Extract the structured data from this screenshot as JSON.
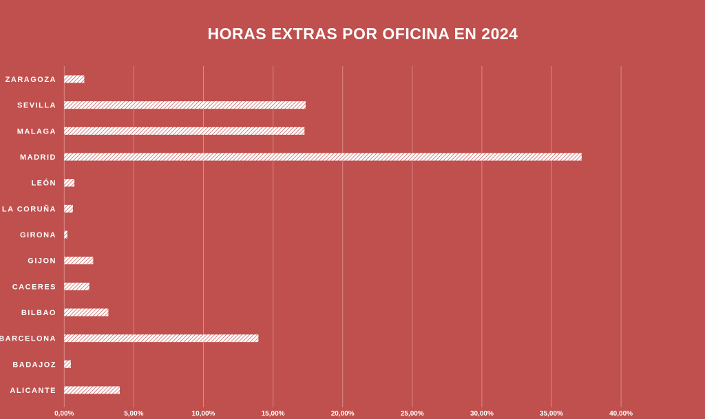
{
  "chart_data": {
    "type": "bar",
    "orientation": "horizontal",
    "title": "HORAS EXTRAS POR OFICINA EN 2024",
    "xlabel": "",
    "ylabel": "",
    "categories": [
      "ZARAGOZA",
      "SEVILLA",
      "MALAGA",
      "MADRID",
      "LEÓN",
      "LA CORUÑA",
      "GIRONA",
      "GIJON",
      "CACERES",
      "BILBAO",
      "BARCELONA",
      "BADAJOZ",
      "ALICANTE"
    ],
    "values": [
      1.44,
      17.34,
      17.26,
      37.17,
      0.73,
      0.62,
      0.22,
      2.08,
      1.8,
      3.17,
      13.95,
      0.48,
      3.99
    ],
    "value_unit": "%",
    "xlim": [
      0,
      45
    ],
    "xticks": [
      0,
      5,
      10,
      15,
      20,
      25,
      30,
      35,
      40
    ],
    "xtick_labels": [
      "0,00%",
      "5,00%",
      "10,00%",
      "15,00%",
      "20,00%",
      "25,00%",
      "30,00%",
      "35,00%",
      "40,00%"
    ],
    "grid": true,
    "legend": "none",
    "colors": {
      "background": "#c0504d",
      "bar": "#ffffff",
      "grid": "#d98a88"
    }
  }
}
